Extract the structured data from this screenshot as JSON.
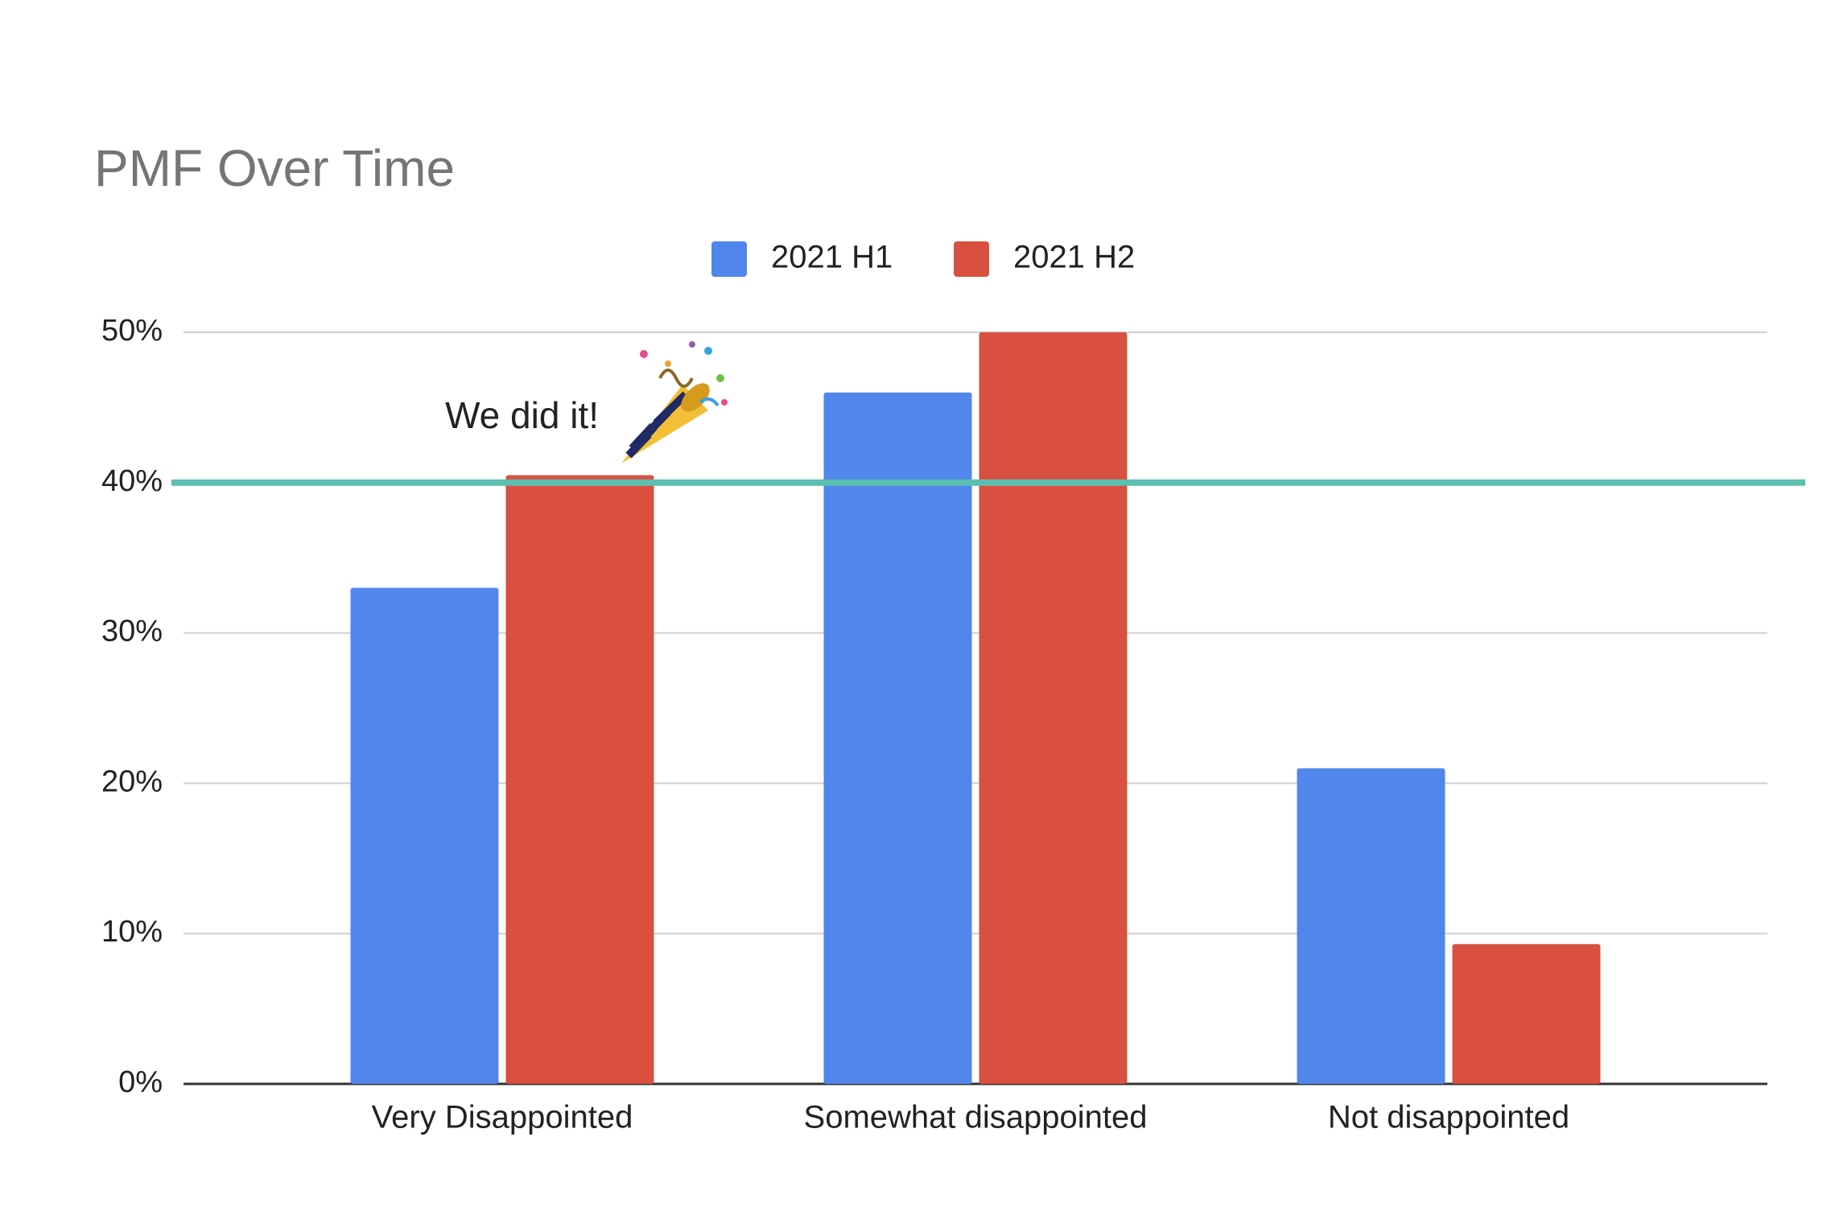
{
  "chart_data": {
    "type": "bar",
    "title": "PMF Over Time",
    "categories": [
      "Very Disappointed",
      "Somewhat disappointed",
      "Not disappointed"
    ],
    "series": [
      {
        "name": "2021 H1",
        "color": "#5186ec",
        "values": [
          33,
          46,
          21
        ]
      },
      {
        "name": "2021 H2",
        "color": "#d95040",
        "values": [
          40.5,
          50,
          9.3
        ]
      }
    ],
    "ylim": [
      0,
      50
    ],
    "yticks": [
      {
        "value": 0,
        "label": "0%"
      },
      {
        "value": 10,
        "label": "10%"
      },
      {
        "value": 20,
        "label": "20%"
      },
      {
        "value": 30,
        "label": "30%"
      },
      {
        "value": 40,
        "label": "40%"
      },
      {
        "value": 50,
        "label": "50%"
      }
    ],
    "grid": true,
    "legend": "top",
    "reference_line": {
      "value": 40,
      "color": "#5bbfb0"
    },
    "annotation": "We did it!"
  }
}
